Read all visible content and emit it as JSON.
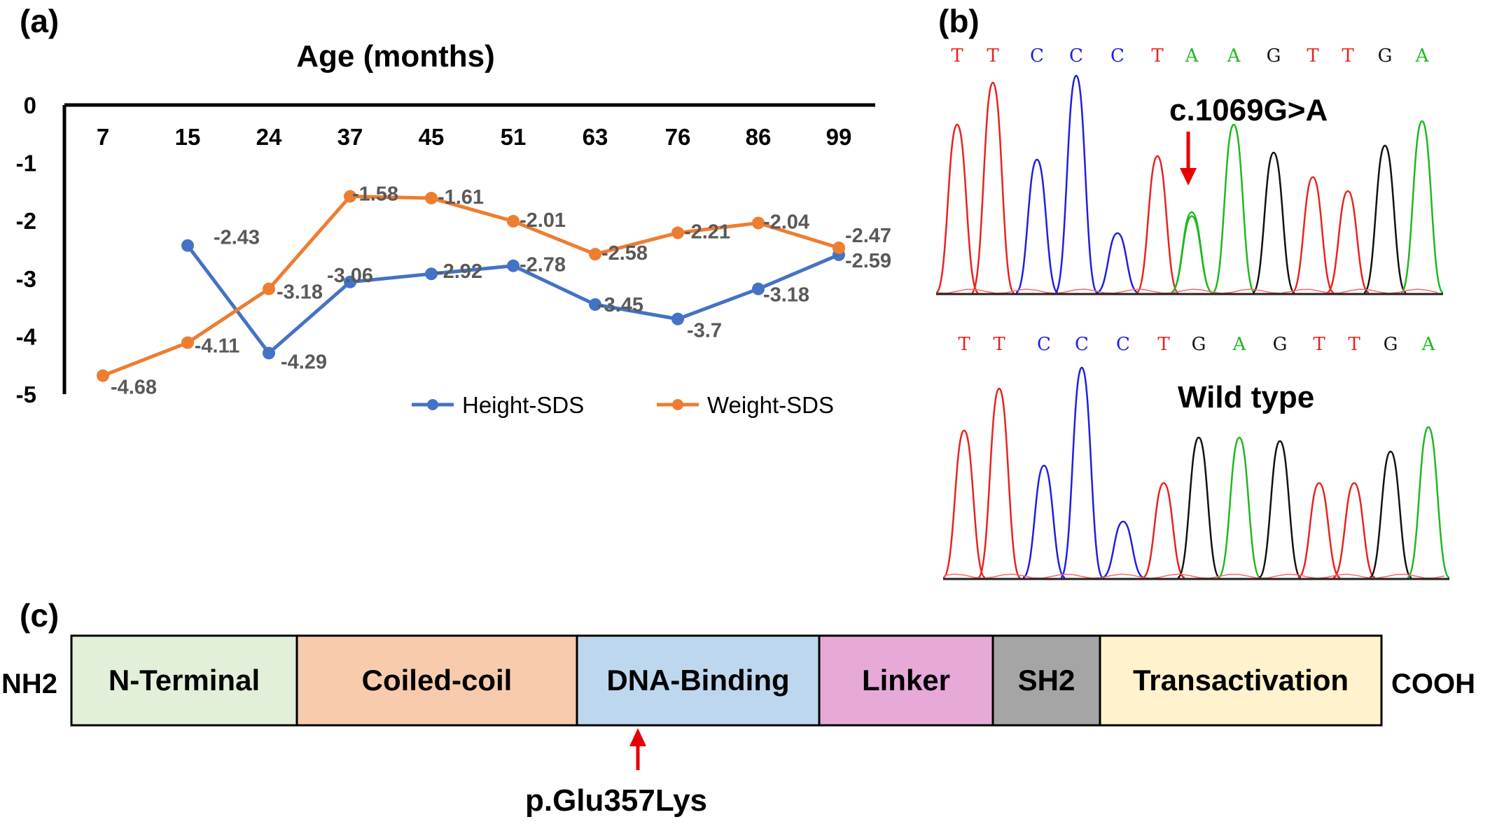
{
  "panels": {
    "a": "(a)",
    "b": "(b)",
    "c": "(c)"
  },
  "chart_data": {
    "type": "line",
    "title": "Age (months)",
    "categories": [
      "7",
      "15",
      "24",
      "37",
      "45",
      "51",
      "63",
      "76",
      "86",
      "99"
    ],
    "y_ticks": [
      "0",
      "-1",
      "-2",
      "-3",
      "-4",
      "-5"
    ],
    "ylim": [
      -5,
      0
    ],
    "x_axis_position": "top",
    "legend_position": "bottom-right",
    "series": [
      {
        "name": "Height-SDS",
        "color": "#4472C4",
        "values": [
          null,
          -2.43,
          -4.29,
          -3.06,
          -2.92,
          -2.78,
          -3.45,
          -3.7,
          -3.18,
          -2.59
        ],
        "labels": [
          "",
          "-2.43",
          "-4.29",
          "-3.06",
          "-2.92",
          "-2.78",
          "-3.45",
          "-3.7",
          "-3.18",
          "-2.59"
        ]
      },
      {
        "name": "Weight-SDS",
        "color": "#ED7D31",
        "values": [
          -4.68,
          -4.11,
          -3.18,
          -1.58,
          -1.61,
          -2.01,
          -2.58,
          -2.21,
          -2.04,
          -2.47
        ],
        "labels": [
          "-4.68",
          "-4.11",
          "-3.18",
          "-1.58",
          "-1.61",
          "-2.01",
          "-2.58",
          "-2.21",
          "-2.04",
          "-2.47"
        ]
      }
    ]
  },
  "chromatogram": {
    "mutant": {
      "sequence": [
        "T",
        "T",
        "C",
        "C",
        "C",
        "T",
        "A",
        "A",
        "G",
        "T",
        "T",
        "G",
        "A"
      ],
      "annotation": "c.1069G>A"
    },
    "wild": {
      "sequence": [
        "T",
        "T",
        "C",
        "C",
        "C",
        "T",
        "G",
        "A",
        "G",
        "T",
        "T",
        "G",
        "A"
      ],
      "annotation": "Wild type"
    },
    "base_colors": {
      "T": "#e8231f",
      "C": "#1f1fe0",
      "A": "#1fb81f",
      "G": "#111111"
    }
  },
  "protein": {
    "n_term": "NH2",
    "c_term": "COOH",
    "domains": [
      {
        "name": "N-Terminal",
        "color": "#e2efd9"
      },
      {
        "name": "Coiled-coil",
        "color": "#f8cbad"
      },
      {
        "name": "DNA-Binding",
        "color": "#bdd7ee"
      },
      {
        "name": "Linker",
        "color": "#e6a9d8"
      },
      {
        "name": "SH2",
        "color": "#a5a5a5"
      },
      {
        "name": "Transactivation",
        "color": "#fff2cc"
      }
    ],
    "mutation": "p.Glu357Lys"
  }
}
